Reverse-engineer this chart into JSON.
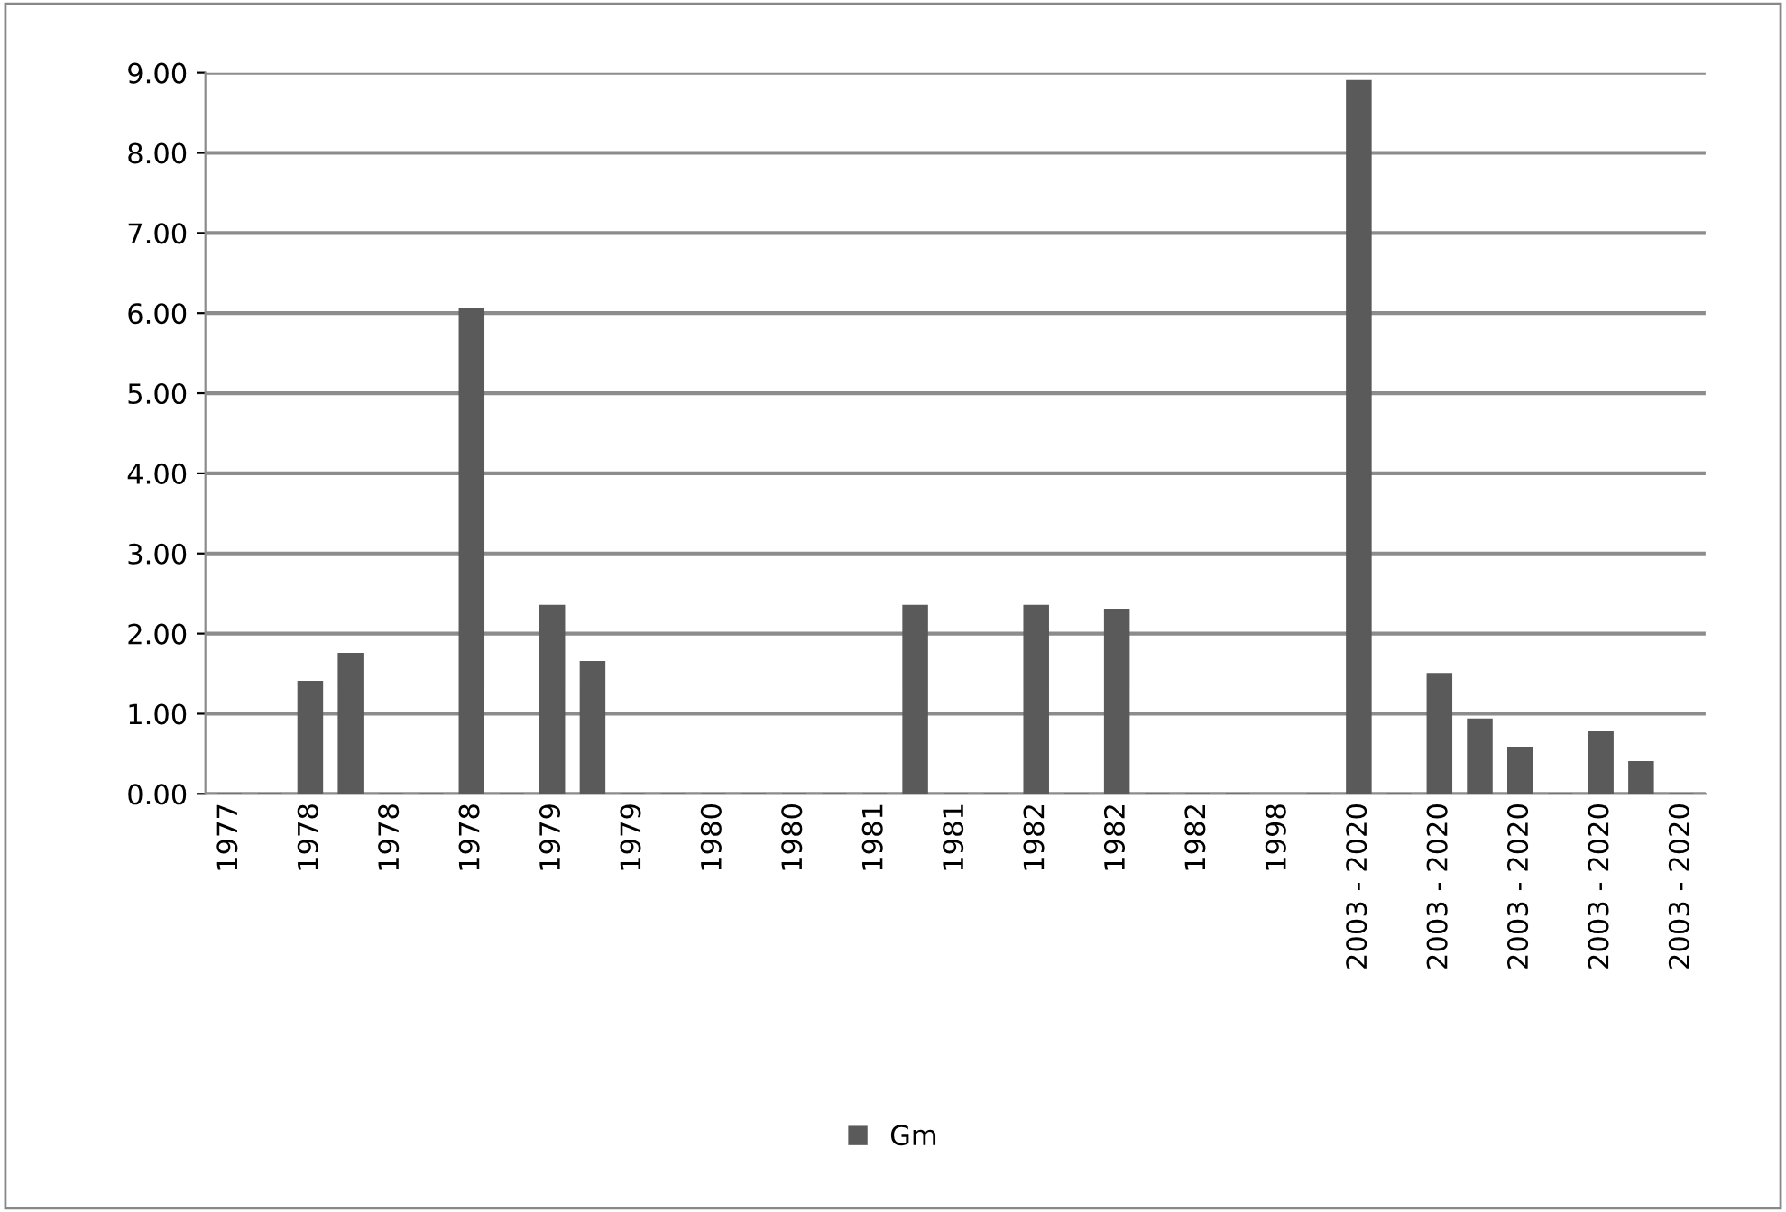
{
  "chart_data": {
    "type": "bar",
    "categories": [
      "1977",
      null,
      "1978",
      null,
      "1978",
      null,
      "1978",
      null,
      "1979",
      null,
      "1979",
      null,
      "1980",
      null,
      "1980",
      null,
      "1981",
      null,
      "1981",
      null,
      "1982",
      null,
      "1982",
      null,
      "1982",
      null,
      "1998",
      null,
      "2003 - 2020",
      null,
      "2003 - 2020",
      null,
      "2003 - 2020",
      null,
      "2003 - 2020",
      null,
      "2003 - 2020"
    ],
    "series": [
      {
        "name": "Gm",
        "color": "#5a5a5a",
        "values": [
          0,
          0,
          1.4,
          1.75,
          0,
          0,
          6.05,
          0,
          2.35,
          1.65,
          0,
          0,
          0,
          0,
          0,
          0,
          0,
          2.35,
          0,
          0,
          2.35,
          0,
          2.3,
          0,
          0,
          0,
          null,
          0,
          8.9,
          0,
          1.5,
          0.93,
          0.58,
          0,
          0.77,
          0.4,
          0
        ]
      }
    ],
    "ylim": [
      0,
      9
    ],
    "yticks": [
      {
        "value": 0,
        "label": "0.00"
      },
      {
        "value": 1,
        "label": "1.00"
      },
      {
        "value": 2,
        "label": "2.00"
      },
      {
        "value": 3,
        "label": "3.00"
      },
      {
        "value": 4,
        "label": "4.00"
      },
      {
        "value": 5,
        "label": "5.00"
      },
      {
        "value": 6,
        "label": "6.00"
      },
      {
        "value": 7,
        "label": "7.00"
      },
      {
        "value": 8,
        "label": "8.00"
      },
      {
        "value": 9,
        "label": "9.00"
      }
    ],
    "grid": "y",
    "legend": "bottom"
  }
}
